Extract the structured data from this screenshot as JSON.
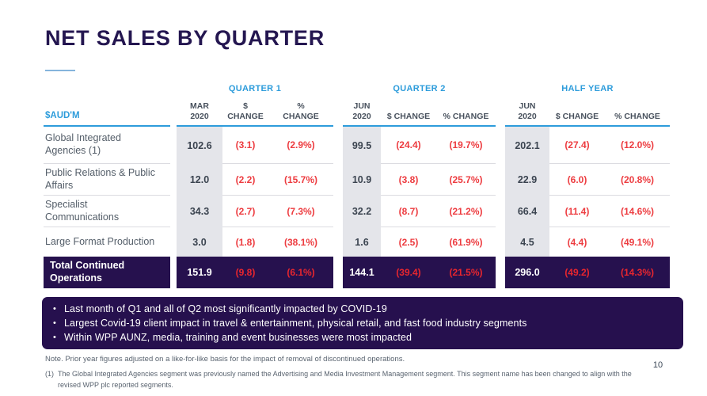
{
  "page": {
    "title": "NET SALES BY QUARTER",
    "page_number": "10"
  },
  "bullet_char": "•",
  "table": {
    "unit_label": "$AUD'M",
    "groups": [
      {
        "title": "QUARTER 1",
        "cols": [
          "MAR 2020",
          "$ CHANGE",
          "% CHANGE"
        ]
      },
      {
        "title": "QUARTER 2",
        "cols": [
          "JUN 2020",
          "$ CHANGE",
          "% CHANGE"
        ]
      },
      {
        "title": "HALF YEAR",
        "cols": [
          "JUN 2020",
          "$ CHANGE",
          "% CHANGE"
        ]
      }
    ],
    "rows": [
      {
        "label": "Global Integrated Agencies (1)",
        "values": [
          "102.6",
          "(3.1)",
          "(2.9%)",
          "99.5",
          "(24.4)",
          "(19.7%)",
          "202.1",
          "(27.4)",
          "(12.0%)"
        ]
      },
      {
        "label": "Public Relations & Public Affairs",
        "values": [
          "12.0",
          "(2.2)",
          "(15.7%)",
          "10.9",
          "(3.8)",
          "(25.7%)",
          "22.9",
          "(6.0)",
          "(20.8%)"
        ]
      },
      {
        "label": "Specialist Communications",
        "values": [
          "34.3",
          "(2.7)",
          "(7.3%)",
          "32.2",
          "(8.7)",
          "(21.2%)",
          "66.4",
          "(11.4)",
          "(14.6%)"
        ]
      },
      {
        "label": "Large Format Production",
        "values": [
          "3.0",
          "(1.8)",
          "(38.1%)",
          "1.6",
          "(2.5)",
          "(61.9%)",
          "4.5",
          "(4.4)",
          "(49.1%)"
        ]
      }
    ],
    "total": {
      "label": "Total Continued Operations",
      "values": [
        "151.9",
        "(9.8)",
        "(6.1%)",
        "144.1",
        "(39.4)",
        "(21.5%)",
        "296.0",
        "(49.2)",
        "(14.3%)"
      ]
    }
  },
  "highlights": [
    "Last month of Q1 and all of Q2 most significantly impacted by COVID-19",
    "Largest Covid-19 client impact in travel & entertainment, physical retail, and fast food industry segments",
    "Within WPP AUNZ, media, training and event businesses were most impacted"
  ],
  "footer": {
    "note": "Note. Prior year figures adjusted on a like-for-like basis for the impact of removal of discontinued operations.",
    "footnote_marker": "(1)",
    "footnote_text": "The Global Integrated Agencies segment was previously named the Advertising and Media Investment Management segment. This segment name has been changed to align with the revised WPP plc reported segments."
  },
  "colors": {
    "accent_blue": "#2d9cdb",
    "title_navy": "#241650",
    "panel_navy": "#26104e",
    "negative_red": "#ed3c40",
    "negative_red_on_dark": "#e8262e",
    "column_gray": "#e4e5ea"
  }
}
